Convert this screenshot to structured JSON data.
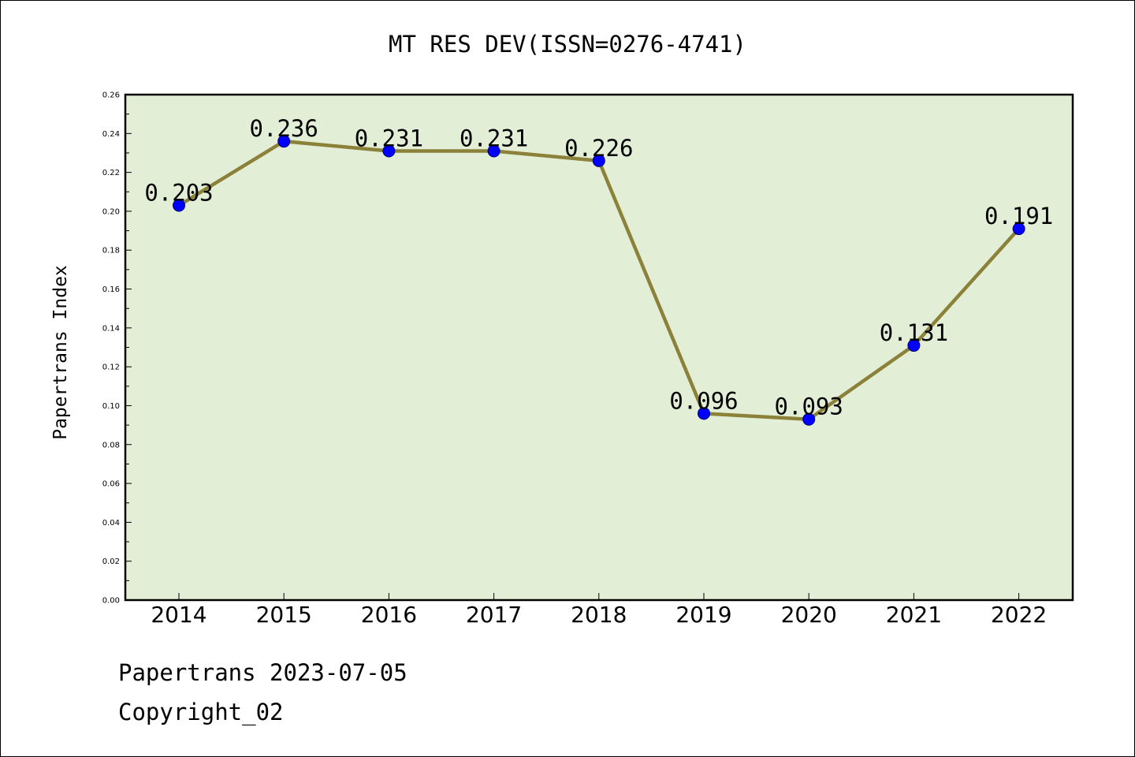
{
  "chart_data": {
    "type": "line",
    "title": "MT RES DEV(ISSN=0276-4741)",
    "xlabel": "",
    "ylabel": "Papertrans Index",
    "categories": [
      "2014",
      "2015",
      "2016",
      "2017",
      "2018",
      "2019",
      "2020",
      "2021",
      "2022"
    ],
    "series": [
      {
        "values": [
          0.203,
          0.236,
          0.231,
          0.231,
          0.226,
          0.096,
          0.093,
          0.131,
          0.191
        ],
        "data_labels": [
          "0.203",
          "0.236",
          "0.231",
          "0.231",
          "0.226",
          "0.096",
          "0.093",
          "0.131",
          "0.191"
        ]
      }
    ],
    "ylim": [
      0,
      0.26
    ],
    "yticks": [
      "0.00",
      "0.02",
      "0.04",
      "0.06",
      "0.08",
      "0.10",
      "0.12",
      "0.14",
      "0.16",
      "0.18",
      "0.20",
      "0.22",
      "0.24",
      "0.26"
    ],
    "grid": false,
    "legend": "none",
    "colors": {
      "plot_background": "#e2efd6",
      "line": "#8b8139",
      "marker": "#0000ff"
    }
  },
  "footer": {
    "date_text": "Papertrans 2023-07-05",
    "copyright_text": "Copyright_02"
  }
}
